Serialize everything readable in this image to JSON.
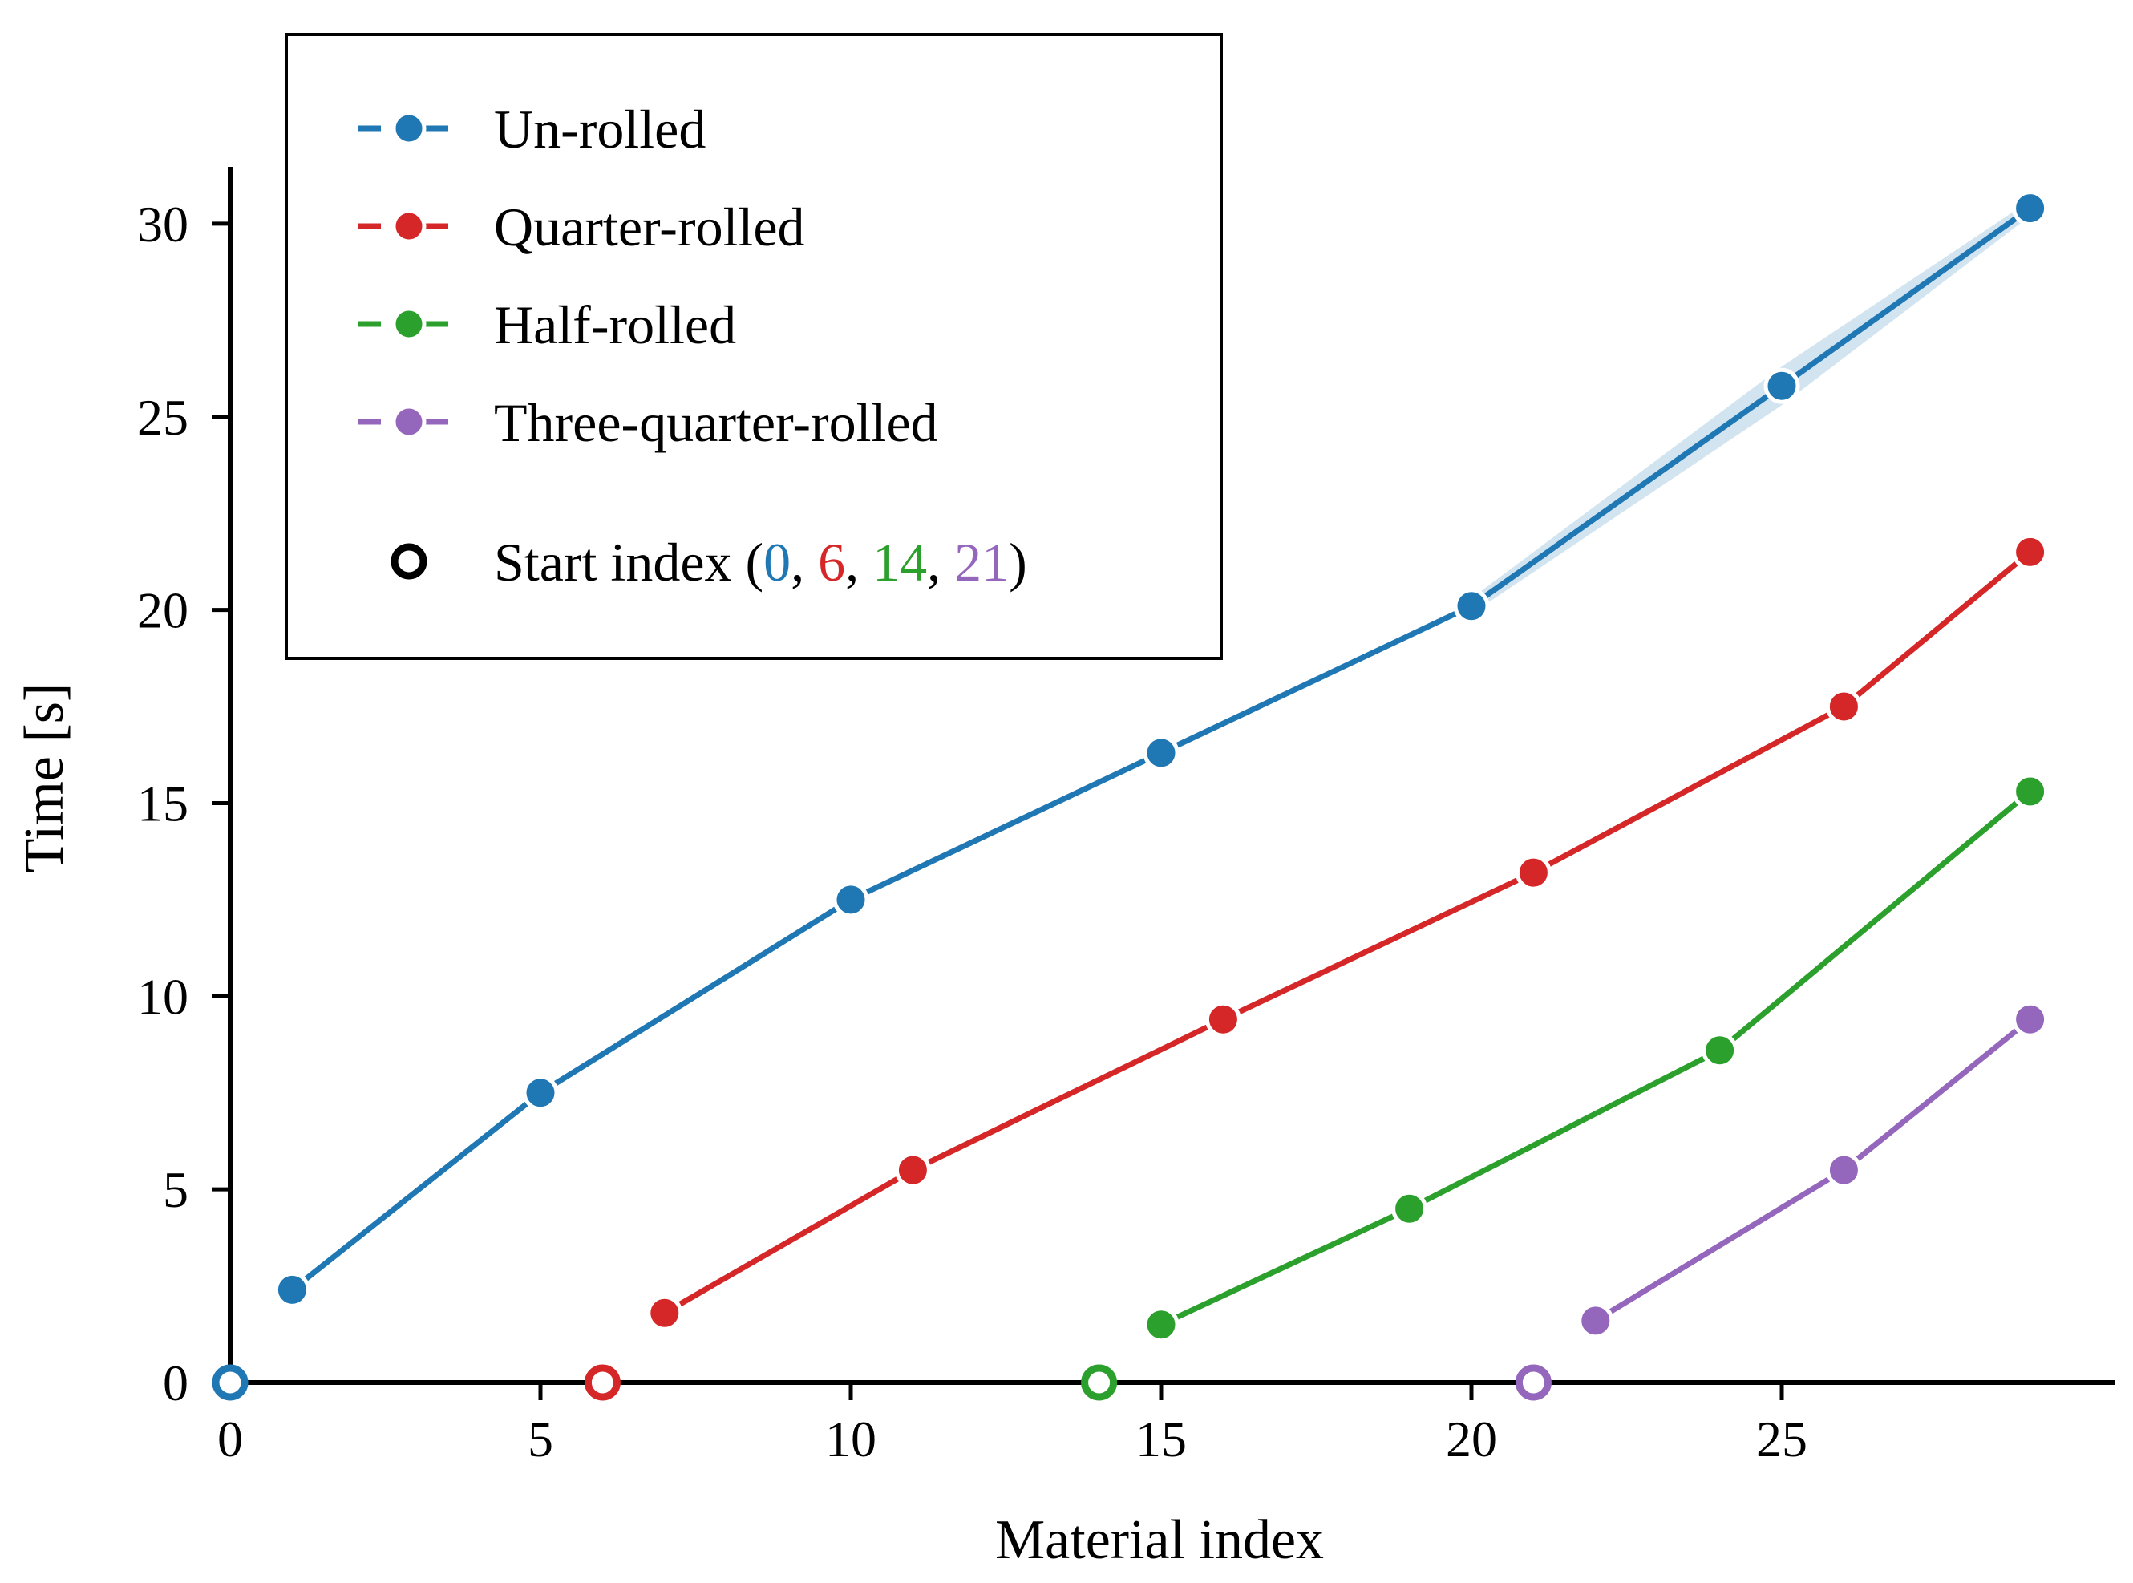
{
  "chart_data": {
    "type": "line",
    "xlabel": "Material index",
    "ylabel": "Time [s]",
    "xlim": [
      -0.1,
      30.3
    ],
    "ylim": [
      -0.5,
      31.5
    ],
    "xticks": [
      0,
      5,
      10,
      15,
      20,
      25
    ],
    "yticks": [
      0,
      5,
      10,
      15,
      20,
      25,
      30
    ],
    "legend_position": "upper-left",
    "series": [
      {
        "name": "Un-rolled",
        "color": "#1f77b4",
        "start_index": 0,
        "x": [
          1,
          5,
          10,
          15,
          20,
          25,
          29
        ],
        "y": [
          2.4,
          7.5,
          12.5,
          16.3,
          20.1,
          25.8,
          30.4
        ],
        "band": {
          "x": [
            20,
            25,
            29
          ],
          "lower": [
            19.9,
            25.3,
            30.2
          ],
          "upper": [
            20.3,
            26.3,
            30.6
          ]
        }
      },
      {
        "name": "Quarter-rolled",
        "color": "#d62728",
        "start_index": 6,
        "x": [
          7,
          11,
          16,
          21,
          26,
          29
        ],
        "y": [
          1.8,
          5.5,
          9.4,
          13.2,
          17.5,
          21.5
        ]
      },
      {
        "name": "Half-rolled",
        "color": "#2ca02c",
        "start_index": 14,
        "x": [
          15,
          19,
          24,
          29
        ],
        "y": [
          1.5,
          4.5,
          8.6,
          15.3
        ]
      },
      {
        "name": "Three-quarter-rolled",
        "color": "#9467bd",
        "start_index": 21,
        "x": [
          22,
          26,
          29
        ],
        "y": [
          1.6,
          5.5,
          9.4
        ]
      }
    ],
    "start_marker": {
      "label_prefix": "Start index (",
      "label_suffix": ")",
      "separator": ", ",
      "values": [
        "0",
        "6",
        "14",
        "21"
      ]
    }
  }
}
